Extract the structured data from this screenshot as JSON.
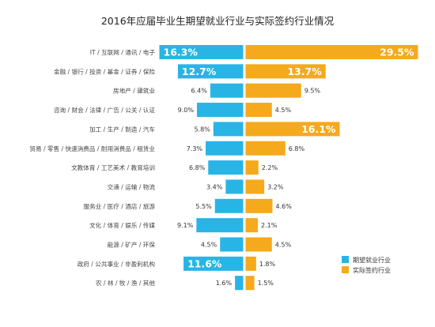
{
  "chart_data": {
    "type": "bar",
    "title": "2016年应届毕业生期望就业行业与实际签约行业情况",
    "categories": [
      "IT / 互联网 / 通讯 / 电子",
      "金融 / 银行 / 投资 / 基金 / 证券 / 保险",
      "房地产 / 建筑业",
      "咨询 / 财会 / 法律 / 广告 / 公关 / 认证",
      "加工 / 生产 / 制造 / 汽车",
      "贸易 / 零售 / 快速消费品 / 耐用消费品 / 租赁业",
      "文教体育 / 工艺美术 / 教育培训",
      "交通 / 运输 / 物流",
      "服务业 / 医疗 / 酒店 / 旅游",
      "文化 / 体育 / 娱乐 / 传媒",
      "能源 / 矿产 / 环保",
      "政府 / 公共事业 / 非盈利机构",
      "农 / 林 / 牧 / 渔 / 其他"
    ],
    "series": [
      {
        "name": "期望就业行业",
        "color": "#29b4e6",
        "values": [
          16.3,
          12.7,
          6.4,
          9.0,
          5.8,
          7.3,
          6.8,
          3.4,
          5.5,
          9.1,
          4.5,
          11.6,
          1.6
        ],
        "labels": [
          "16.3%",
          "12.7%",
          "6.4%",
          "9.0%",
          "5.8%",
          "7.3%",
          "6.8%",
          "3.4%",
          "5.5%",
          "9.1%",
          "4.5%",
          "11.6%",
          "1.6%"
        ]
      },
      {
        "name": "实际签约行业",
        "color": "#f5a91c",
        "values": [
          29.5,
          13.7,
          9.5,
          4.5,
          16.1,
          6.8,
          2.2,
          3.2,
          4.6,
          2.1,
          4.5,
          1.8,
          1.5
        ],
        "labels": [
          "29.5%",
          "13.7%",
          "9.5%",
          "4.5%",
          "16.1%",
          "6.8%",
          "2.2%",
          "3.2%",
          "4.6%",
          "2.1%",
          "4.5%",
          "1.8%",
          "1.5%"
        ]
      }
    ],
    "highlighted": {
      "期望就业行业": [
        0,
        1,
        11
      ],
      "实际签约行业": [
        0,
        1,
        4
      ]
    }
  }
}
